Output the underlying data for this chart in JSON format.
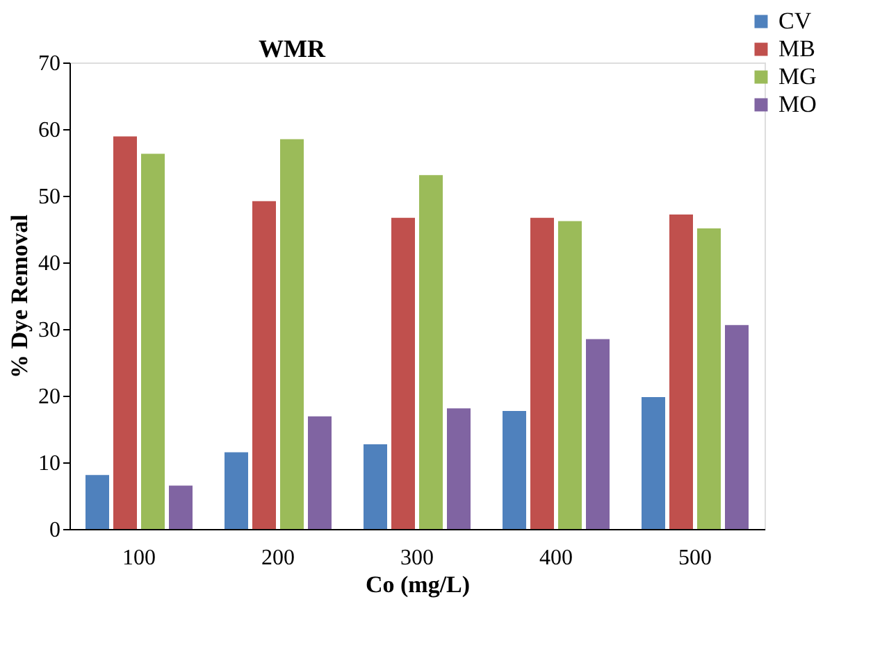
{
  "chart_data": {
    "type": "bar",
    "title": "WMR",
    "xlabel": "Co (mg/L)",
    "ylabel": "% Dye Removal",
    "categories": [
      "100",
      "200",
      "300",
      "400",
      "500"
    ],
    "series": [
      {
        "name": "CV",
        "color": "#4f81bd",
        "values": [
          8.1,
          11.5,
          12.7,
          17.7,
          19.8
        ]
      },
      {
        "name": "MB",
        "color": "#c0504d",
        "values": [
          58.9,
          49.2,
          46.7,
          46.7,
          47.2
        ]
      },
      {
        "name": "MG",
        "color": "#9bbb59",
        "values": [
          56.3,
          58.5,
          53.1,
          46.2,
          45.1
        ]
      },
      {
        "name": "MO",
        "color": "#8064a2",
        "values": [
          6.5,
          16.9,
          18.1,
          28.5,
          30.6
        ]
      }
    ],
    "ylim": [
      0,
      70
    ],
    "yticks": [
      0,
      10,
      20,
      30,
      40,
      50,
      60,
      70
    ],
    "grid": false,
    "legend": "top right"
  }
}
